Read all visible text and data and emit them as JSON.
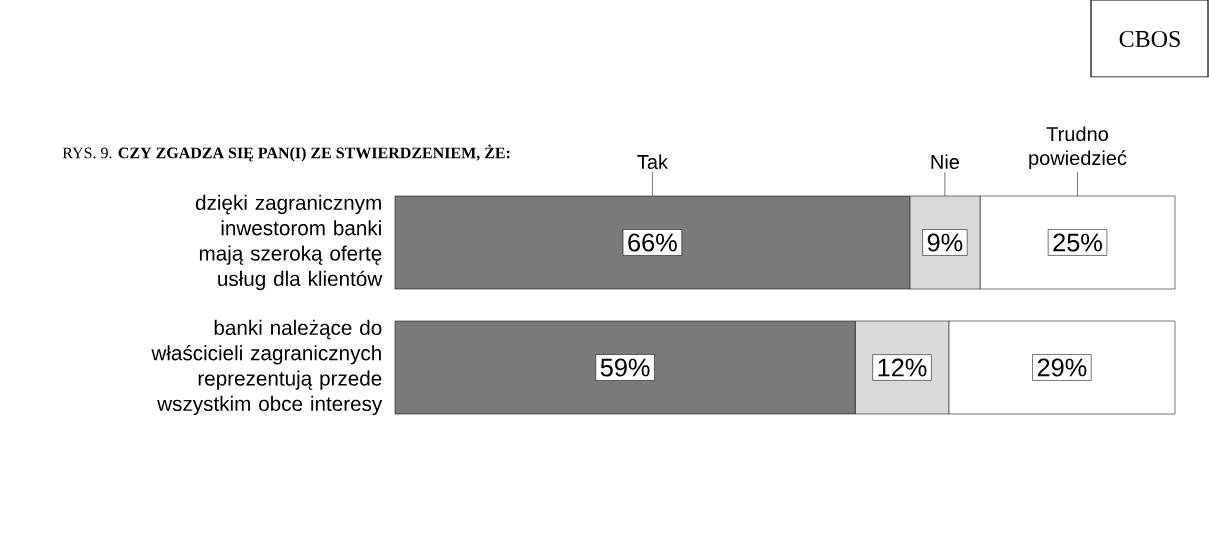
{
  "chart_data": {
    "type": "bar",
    "orientation": "horizontal",
    "stacked": true,
    "title": "RYS. 9. **CZY ZGADZA SIĘ PAN(I) ZE STWIERDZENIEM, ŻE:**",
    "annotations": [
      "CBOS"
    ],
    "categories": [
      "dzięki zagranicznym inwestorom banki mają szeroką ofertę usług dla klientów",
      "banki należące do właścicieli zagranicznych reprezentują przede wszystkim obce interesy"
    ],
    "tick_labels": "y",
    "series": [
      {
        "name": "Tak",
        "color": "#7a7a7a",
        "values": [
          66,
          59
        ],
        "value_labels": [
          "66%",
          "59%"
        ]
      },
      {
        "name": "Nie",
        "color": "#d9d9d9",
        "values": [
          9,
          12
        ],
        "value_labels": [
          "9%",
          "12%"
        ]
      },
      {
        "name": "Trudno powiedzieć",
        "color": "#ffffff",
        "values": [
          25,
          29
        ],
        "value_labels": [
          "25%",
          "29%"
        ]
      }
    ]
  }
}
